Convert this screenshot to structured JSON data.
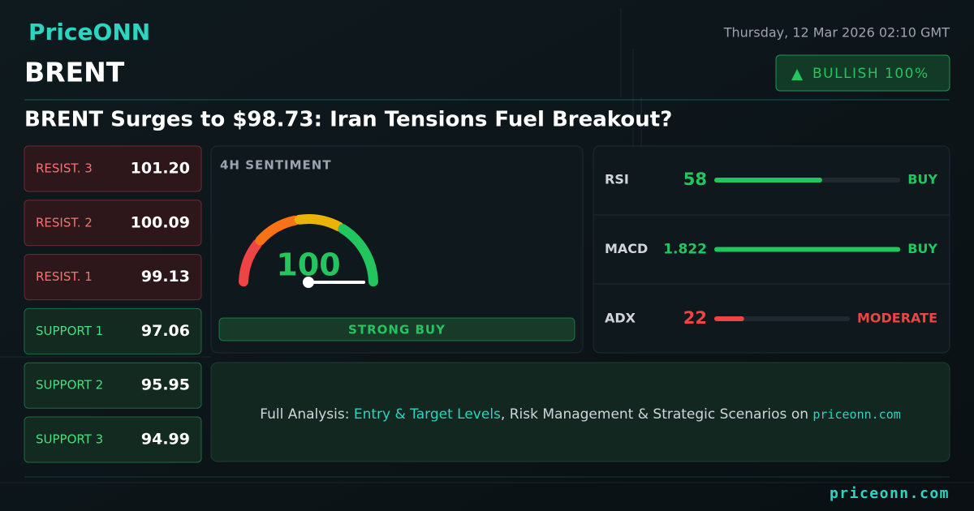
{
  "header": {
    "brand": "PriceONN",
    "datetime": "Thursday, 12 Mar 2026 02:10 GMT",
    "symbol": "BRENT",
    "badge": "BULLISH 100%",
    "headline": "BRENT Surges to $98.73: Iran Tensions Fuel Breakout?"
  },
  "levels": [
    {
      "label": "RESIST. 3",
      "value": "101.20",
      "kind": "resistance"
    },
    {
      "label": "RESIST. 2",
      "value": "100.09",
      "kind": "resistance"
    },
    {
      "label": "RESIST. 1",
      "value": "99.13",
      "kind": "resistance"
    },
    {
      "label": "SUPPORT 1",
      "value": "97.06",
      "kind": "support"
    },
    {
      "label": "SUPPORT 2",
      "value": "95.95",
      "kind": "support"
    },
    {
      "label": "SUPPORT 3",
      "value": "94.99",
      "kind": "support"
    }
  ],
  "sentiment": {
    "title": "4H SENTIMENT",
    "value": 100,
    "label": "STRONG BUY"
  },
  "indicators": [
    {
      "name": "RSI",
      "value": 58,
      "signal": "BUY",
      "color": "#22c55e"
    },
    {
      "name": "MACD",
      "value": 1.822,
      "signal": "BUY",
      "color": "#22c55e"
    },
    {
      "name": "ADX",
      "value": 22,
      "signal": "MODERATE",
      "color": "#ef4444"
    }
  ],
  "cta": {
    "prefix": "Full Analysis: ",
    "highlight": "Entry & Target Levels",
    "middle": ", Risk Management & Strategic Scenarios on ",
    "link": "priceonn.com"
  },
  "footer": {
    "url": "priceonn.com"
  }
}
